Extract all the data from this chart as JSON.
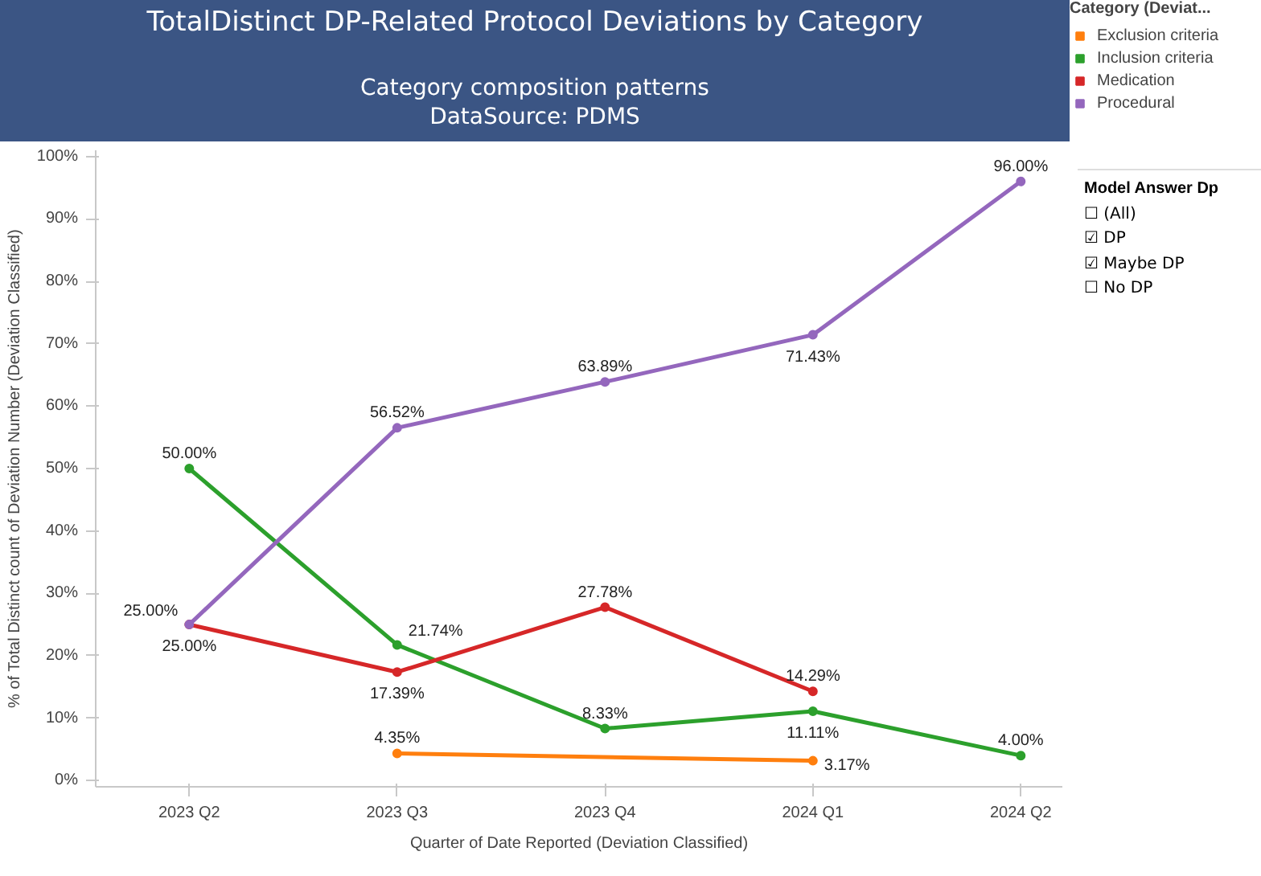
{
  "chart_data": [
    {
      "type": "line",
      "title": "TotalDistinct DP-Related Protocol Deviations by Category",
      "subtitle": "Category composition patterns\nDataSource: PDMS",
      "xlabel": "Quarter of Date Reported (Deviation Classified)",
      "ylabel": "% of Total Distinct count of Deviation Number (Deviation Classified)",
      "legend_title": "Category (Deviat...",
      "categories": [
        "2023 Q2",
        "2023 Q3",
        "2023 Q4",
        "2024 Q1",
        "2024 Q2"
      ],
      "series": [
        {
          "name": "Exclusion criteria",
          "color": "#ff7f0e",
          "values": [
            null,
            4.35,
            null,
            3.17,
            null
          ],
          "value_labels": [
            null,
            "4.35%",
            null,
            "3.17%",
            null
          ]
        },
        {
          "name": "Inclusion criteria",
          "color": "#2ca02c",
          "values": [
            50.0,
            21.74,
            8.33,
            11.11,
            4.0
          ],
          "value_labels": [
            "50.00%",
            "21.74%",
            "8.33%",
            "11.11%",
            "4.00%"
          ]
        },
        {
          "name": "Medication",
          "color": "#d62728",
          "values": [
            25.0,
            17.39,
            27.78,
            14.29,
            null
          ],
          "value_labels": [
            "25.00%",
            "17.39%",
            "27.78%",
            "14.29%",
            null
          ]
        },
        {
          "name": "Procedural",
          "color": "#9467bd",
          "values": [
            25.0,
            56.52,
            63.89,
            71.43,
            96.0
          ],
          "value_labels": [
            "25.00%",
            "56.52%",
            "63.89%",
            "71.43%",
            "96.00%"
          ]
        }
      ],
      "ylim": [
        -1,
        101
      ],
      "yticks": [
        {
          "value": 0,
          "label": "0%"
        },
        {
          "value": 10,
          "label": "10%"
        },
        {
          "value": 20,
          "label": "20%"
        },
        {
          "value": 30,
          "label": "30%"
        },
        {
          "value": 40,
          "label": "40%"
        },
        {
          "value": 50,
          "label": "50%"
        },
        {
          "value": 60,
          "label": "60%"
        },
        {
          "value": 70,
          "label": "70%"
        },
        {
          "value": 80,
          "label": "80%"
        },
        {
          "value": 90,
          "label": "90%"
        },
        {
          "value": 100,
          "label": "100%"
        }
      ],
      "marker": "circle",
      "line_style": "solid",
      "grid": false,
      "legend": "right"
    },
    {
      "type": "other",
      "title": "Model Answer Dp",
      "annotations": [
        "☐ (All)",
        "☑ DP",
        "☑ Maybe DP",
        "☐ No DP"
      ]
    }
  ]
}
